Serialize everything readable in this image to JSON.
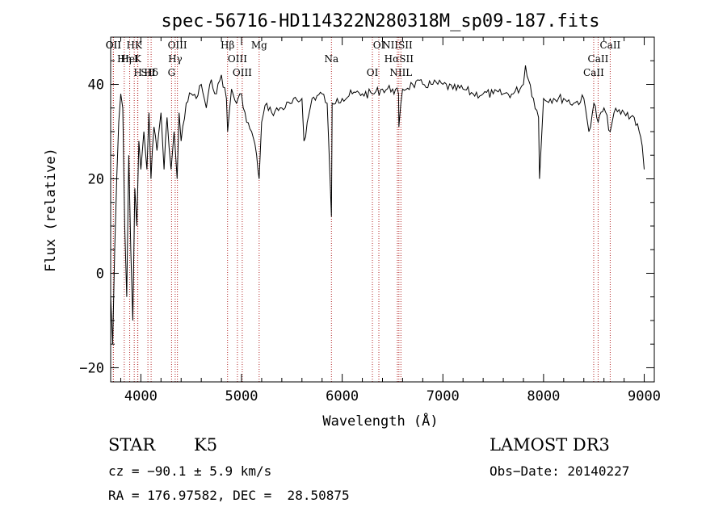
{
  "chart_data": {
    "type": "line",
    "title": "spec-56716-HD114322N280318M_sp09-187.fits",
    "xlabel": "Wavelength (Å)",
    "ylabel": "Flux (relative)",
    "xlim": [
      3700,
      9100
    ],
    "ylim": [
      -23,
      50
    ],
    "xticks": [
      4000,
      5000,
      6000,
      7000,
      8000,
      9000
    ],
    "yticks": [
      -20,
      0,
      20,
      40
    ],
    "series": [
      {
        "name": "flux",
        "x": [
          3700,
          3720,
          3740,
          3760,
          3780,
          3800,
          3820,
          3840,
          3860,
          3880,
          3900,
          3920,
          3940,
          3960,
          3980,
          4000,
          4030,
          4060,
          4080,
          4100,
          4130,
          4160,
          4200,
          4230,
          4260,
          4300,
          4330,
          4360,
          4380,
          4400,
          4450,
          4500,
          4550,
          4600,
          4650,
          4700,
          4750,
          4800,
          4850,
          4862,
          4900,
          4950,
          5000,
          5050,
          5100,
          5150,
          5175,
          5200,
          5250,
          5300,
          5400,
          5500,
          5600,
          5620,
          5700,
          5800,
          5850,
          5893,
          5900,
          5950,
          6000,
          6100,
          6200,
          6300,
          6400,
          6500,
          6560,
          6563,
          6600,
          6700,
          6800,
          6900,
          7000,
          7100,
          7200,
          7300,
          7400,
          7500,
          7600,
          7700,
          7800,
          7820,
          7900,
          7950,
          7960,
          8000,
          8100,
          8200,
          8300,
          8400,
          8450,
          8500,
          8542,
          8600,
          8662,
          8700,
          8800,
          8900,
          8950,
          8980,
          9000
        ],
        "y": [
          -5,
          -15,
          5,
          20,
          32,
          38,
          35,
          10,
          -5,
          25,
          5,
          -10,
          18,
          10,
          28,
          22,
          30,
          22,
          34,
          20,
          31,
          26,
          34,
          22,
          33,
          22,
          30,
          20,
          34,
          28,
          36,
          38,
          37,
          40,
          35,
          41,
          38,
          42,
          37,
          30,
          39,
          36,
          38,
          32,
          30,
          25,
          20,
          32,
          36,
          34,
          35,
          36,
          37,
          28,
          37,
          38,
          36,
          12,
          36,
          37,
          37,
          38,
          38,
          38,
          39,
          39,
          38,
          31,
          39,
          40,
          40,
          40,
          40,
          39,
          39,
          38,
          38,
          38,
          38,
          38,
          40,
          44,
          37,
          33,
          20,
          37,
          37,
          37,
          36,
          37,
          30,
          36,
          32,
          35,
          30,
          34,
          34,
          33,
          30,
          27,
          22
        ],
        "color": "#000000"
      }
    ],
    "spectral_lines": [
      {
        "label": "HK",
        "x": 3934
      },
      {
        "label": "K",
        "x": 3968
      },
      {
        "label": "Hδ",
        "x": 4102
      },
      {
        "label": "OII",
        "x": 3727
      },
      {
        "label": "HeI",
        "x": 3889
      },
      {
        "label": "SII",
        "x": 4070
      },
      {
        "label": "OII",
        "x": 3727
      },
      {
        "label": "Hη",
        "x": 3835
      },
      {
        "label": "H",
        "x": 3970
      },
      {
        "label": "OIII",
        "x": 4363
      },
      {
        "label": "Hγ",
        "x": 4341
      },
      {
        "label": "G",
        "x": 4305
      },
      {
        "label": "Hβ",
        "x": 4861
      },
      {
        "label": "OIII",
        "x": 4959
      },
      {
        "label": "OIII",
        "x": 5007
      },
      {
        "label": "Mg",
        "x": 5175
      },
      {
        "label": "Na",
        "x": 5893
      },
      {
        "label": "OI",
        "x": 6300
      },
      {
        "label": "OI",
        "x": 6364
      },
      {
        "label": "HαSII",
        "x": 6563
      },
      {
        "label": "NIIL",
        "x": 6583
      },
      {
        "label": "NIISII",
        "x": 6548
      },
      {
        "label": "CaII",
        "x": 8542
      },
      {
        "label": "CaII",
        "x": 8498
      },
      {
        "label": "CaII",
        "x": 8662
      }
    ]
  },
  "info": {
    "object_class": "STAR",
    "subclass": "K5",
    "survey": "LAMOST DR3",
    "cz": "cz = −90.1 ± 5.9 km/s",
    "obs_date": "Obs−Date: 20140227",
    "coords": "RA = 176.97582, DEC =  28.50875"
  }
}
